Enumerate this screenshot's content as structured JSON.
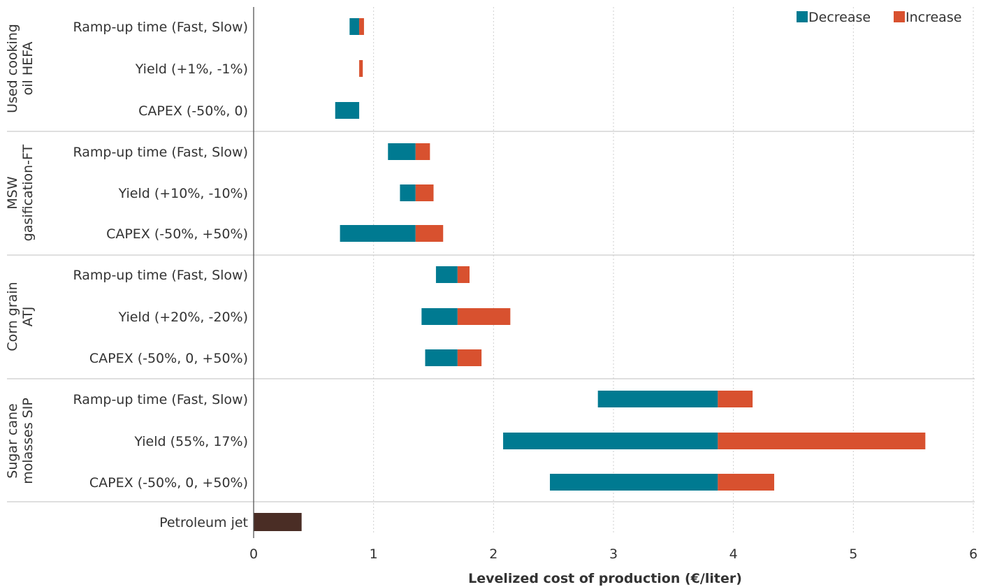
{
  "chart_data": {
    "type": "bar",
    "orientation": "horizontal",
    "stacking": "tornado",
    "xlabel": "Levelized cost of production (€/liter)",
    "xlim": [
      0,
      6
    ],
    "xticks": [
      0,
      1,
      2,
      3,
      4,
      5,
      6
    ],
    "grid": "vertical dotted",
    "legend_position": "top-right",
    "legend": [
      {
        "name": "Decrease",
        "color": "#007A91"
      },
      {
        "name": "Increase",
        "color": "#D8512F"
      }
    ],
    "groups": [
      {
        "name": "Used cooking oil HEFA",
        "label_lines": [
          "Used cooking",
          "oil HEFA"
        ],
        "rows": [
          {
            "label": "Ramp-up time (Fast, Slow)",
            "low": 0.8,
            "base": 0.88,
            "high": 0.92
          },
          {
            "label": "Yield (+1%, -1%)",
            "low": 0.88,
            "base": 0.88,
            "high": 0.91
          },
          {
            "label": "CAPEX (-50%, 0)",
            "low": 0.68,
            "base": 0.88,
            "high": 0.88
          }
        ]
      },
      {
        "name": "MSW gasification-FT",
        "label_lines": [
          "MSW",
          "gasification-FT"
        ],
        "rows": [
          {
            "label": "Ramp-up time (Fast, Slow)",
            "low": 1.12,
            "base": 1.35,
            "high": 1.47
          },
          {
            "label": "Yield (+10%, -10%)",
            "low": 1.22,
            "base": 1.35,
            "high": 1.5
          },
          {
            "label": "CAPEX (-50%, +50%)",
            "low": 0.72,
            "base": 1.35,
            "high": 1.58
          }
        ]
      },
      {
        "name": "Corn grain ATJ",
        "label_lines": [
          "Corn grain",
          "ATJ"
        ],
        "rows": [
          {
            "label": "Ramp-up time (Fast, Slow)",
            "low": 1.52,
            "base": 1.7,
            "high": 1.8
          },
          {
            "label": "Yield (+20%, -20%)",
            "low": 1.4,
            "base": 1.7,
            "high": 2.14
          },
          {
            "label": "CAPEX (-50%, 0, +50%)",
            "low": 1.43,
            "base": 1.7,
            "high": 1.9
          }
        ]
      },
      {
        "name": "Sugar cane molasses SIP",
        "label_lines": [
          "Sugar cane",
          "molasses SIP"
        ],
        "rows": [
          {
            "label": "Ramp-up time (Fast, Slow)",
            "low": 2.87,
            "base": 3.87,
            "high": 4.16
          },
          {
            "label": "Yield (55%, 17%)",
            "low": 2.08,
            "base": 3.87,
            "high": 5.6
          },
          {
            "label": "CAPEX (-50%, 0, +50%)",
            "low": 2.47,
            "base": 3.87,
            "high": 4.34
          }
        ]
      }
    ],
    "reference": {
      "label": "Petroleum jet",
      "value": 0.4,
      "color": "#4A2D25"
    }
  }
}
